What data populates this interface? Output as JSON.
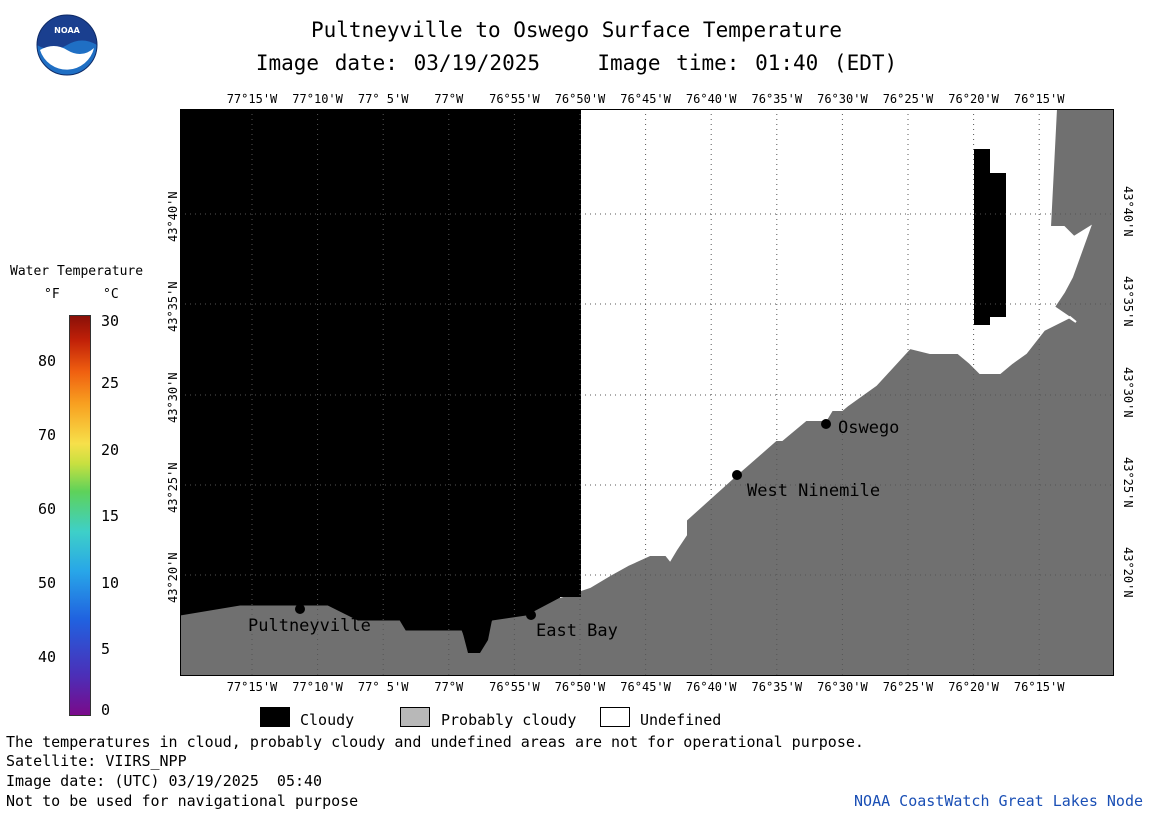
{
  "header": {
    "title": "Pultneyville to Oswego Surface Temperature",
    "date_label": "Image date:",
    "date": "03/19/2025",
    "time_label": "Image time:",
    "time": "01:40 (EDT)"
  },
  "logo": {
    "text": "NOAA"
  },
  "map": {
    "lon_labels": [
      "77°15'W",
      "77°10'W",
      "77° 5'W",
      "77°W",
      "76°55'W",
      "76°50'W",
      "76°45'W",
      "76°40'W",
      "76°35'W",
      "76°30'W",
      "76°25'W",
      "76°20'W",
      "76°15'W"
    ],
    "lat_labels": [
      "43°40'N",
      "43°35'N",
      "43°30'N",
      "43°25'N",
      "43°20'N"
    ],
    "places": {
      "pultneyville": "Pultneyville",
      "east_bay": "East Bay",
      "west_ninemile": "West Ninemile",
      "oswego": "Oswego"
    },
    "colors": {
      "cloudy": "#000000",
      "probably_cloudy": "#707070",
      "undefined": "#ffffff"
    }
  },
  "scale": {
    "title": "Water Temperature",
    "unit_f": "°F",
    "unit_c": "°C",
    "f_ticks": [
      "80",
      "70",
      "60",
      "50",
      "40"
    ],
    "c_ticks": [
      "30",
      "25",
      "20",
      "15",
      "10",
      "5",
      "0"
    ]
  },
  "legend": {
    "cloudy": "Cloudy",
    "probably_cloudy": "Probably cloudy",
    "undefined": "Undefined"
  },
  "footer": {
    "disclaimer": "The temperatures in cloud, probably cloudy and undefined areas are not for operational purpose.",
    "satellite": "Satellite: VIIRS_NPP",
    "utc_date": "Image date: (UTC) 03/19/2025  05:40",
    "nav_warning": "Not to be used for navigational purpose",
    "credit": "NOAA CoastWatch Great Lakes Node"
  }
}
